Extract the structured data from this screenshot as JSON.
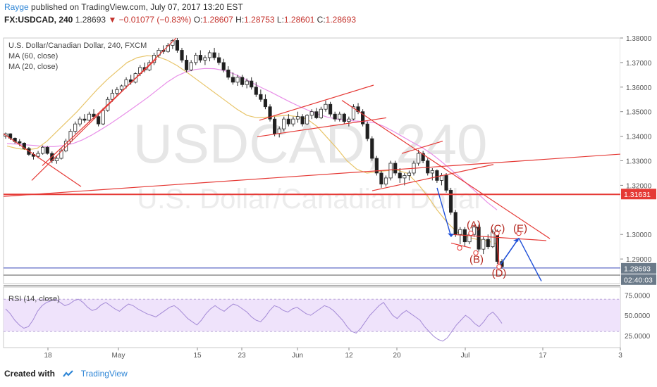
{
  "header": {
    "user": "Rayge",
    "published": "published on TradingView.com, July 07, 2017 13:20 EST",
    "symbol": "FX:USDCAD, 240",
    "last": "1.28693",
    "change": "−0.01077 (−0.83%)",
    "ohlc": {
      "o_label": "O:",
      "o": "1.28607",
      "h_label": "H:",
      "h": "1.28753",
      "l_label": "L:",
      "l": "1.28601",
      "c_label": "C:",
      "c": "1.28693"
    }
  },
  "legend": {
    "title": "U.S. Dollar/Canadian Dollar, 240, FXCM",
    "ma60": "MA (60, close)",
    "ma20": "MA (20, close)",
    "rsi": "RSI (14, close)"
  },
  "watermark": {
    "big": "USDCAD, 240",
    "small": "U.S. Dollar/Canadian Dollar"
  },
  "colors": {
    "up": "#4a4a4a",
    "down": "#1f1f1f",
    "ma60": "#e88fe8",
    "ma20": "#e8c56a",
    "trend": "#e53935",
    "arrow_blue": "#1e4fd8",
    "price_line": "#3543b8",
    "rsi_line": "#a48ad6",
    "rsi_band": "#efe3fb",
    "accent": "#2f86d6"
  },
  "chart_data": {
    "type": "candlestick",
    "price_scale": {
      "min": 1.28,
      "max": 1.38,
      "ticks": [
        "1.38000",
        "1.37000",
        "1.36000",
        "1.35000",
        "1.34000",
        "1.33000",
        "1.32000",
        "1.30000",
        "1.29000"
      ]
    },
    "x_labels": [
      "18",
      "May",
      "15",
      "23",
      "Jun",
      "12",
      "20",
      "Jul",
      "17",
      "3"
    ],
    "candles": [
      [
        1.34,
        1.3415,
        1.339,
        1.341
      ],
      [
        1.341,
        1.3412,
        1.3385,
        1.3392
      ],
      [
        1.3392,
        1.3395,
        1.337,
        1.3378
      ],
      [
        1.3378,
        1.3388,
        1.336,
        1.3372
      ],
      [
        1.3372,
        1.3375,
        1.3345,
        1.335
      ],
      [
        1.335,
        1.3356,
        1.332,
        1.3326
      ],
      [
        1.3326,
        1.3335,
        1.3305,
        1.3318
      ],
      [
        1.3318,
        1.334,
        1.331,
        1.333
      ],
      [
        1.333,
        1.3362,
        1.3325,
        1.3355
      ],
      [
        1.3355,
        1.336,
        1.3325,
        1.333
      ],
      [
        1.333,
        1.3338,
        1.329,
        1.33
      ],
      [
        1.33,
        1.3318,
        1.3288,
        1.331
      ],
      [
        1.331,
        1.335,
        1.3305,
        1.334
      ],
      [
        1.334,
        1.339,
        1.3335,
        1.338
      ],
      [
        1.338,
        1.343,
        1.337,
        1.342
      ],
      [
        1.342,
        1.346,
        1.341,
        1.345
      ],
      [
        1.345,
        1.348,
        1.344,
        1.347
      ],
      [
        1.347,
        1.349,
        1.3455,
        1.3465
      ],
      [
        1.3465,
        1.35,
        1.346,
        1.349
      ],
      [
        1.349,
        1.351,
        1.347,
        1.348
      ],
      [
        1.348,
        1.3495,
        1.344,
        1.345
      ],
      [
        1.345,
        1.3515,
        1.3445,
        1.3505
      ],
      [
        1.3505,
        1.356,
        1.35,
        1.355
      ],
      [
        1.355,
        1.359,
        1.354,
        1.3575
      ],
      [
        1.3575,
        1.36,
        1.3565,
        1.359
      ],
      [
        1.359,
        1.361,
        1.358,
        1.3605
      ],
      [
        1.3605,
        1.364,
        1.3595,
        1.363
      ],
      [
        1.363,
        1.365,
        1.361,
        1.362
      ],
      [
        1.362,
        1.366,
        1.3615,
        1.3655
      ],
      [
        1.3655,
        1.369,
        1.3645,
        1.368
      ],
      [
        1.368,
        1.37,
        1.366,
        1.367
      ],
      [
        1.367,
        1.371,
        1.3665,
        1.37
      ],
      [
        1.37,
        1.374,
        1.369,
        1.373
      ],
      [
        1.373,
        1.376,
        1.372,
        1.375
      ],
      [
        1.375,
        1.377,
        1.3735,
        1.3745
      ],
      [
        1.3745,
        1.378,
        1.374,
        1.377
      ],
      [
        1.377,
        1.3795,
        1.3755,
        1.379
      ],
      [
        1.379,
        1.38,
        1.374,
        1.375
      ],
      [
        1.375,
        1.376,
        1.37,
        1.371
      ],
      [
        1.371,
        1.373,
        1.366,
        1.367
      ],
      [
        1.367,
        1.371,
        1.3665,
        1.37
      ],
      [
        1.37,
        1.374,
        1.369,
        1.373
      ],
      [
        1.373,
        1.375,
        1.37,
        1.371
      ],
      [
        1.371,
        1.373,
        1.369,
        1.372
      ],
      [
        1.372,
        1.375,
        1.3705,
        1.374
      ],
      [
        1.374,
        1.376,
        1.371,
        1.372
      ],
      [
        1.372,
        1.374,
        1.369,
        1.37
      ],
      [
        1.37,
        1.3715,
        1.366,
        1.367
      ],
      [
        1.367,
        1.3685,
        1.363,
        1.364
      ],
      [
        1.364,
        1.366,
        1.361,
        1.362
      ],
      [
        1.362,
        1.365,
        1.3605,
        1.364
      ],
      [
        1.364,
        1.365,
        1.36,
        1.361
      ],
      [
        1.361,
        1.3635,
        1.3595,
        1.3625
      ],
      [
        1.3625,
        1.364,
        1.359,
        1.36
      ],
      [
        1.36,
        1.362,
        1.356,
        1.357
      ],
      [
        1.357,
        1.359,
        1.354,
        1.355
      ],
      [
        1.355,
        1.357,
        1.351,
        1.352
      ],
      [
        1.352,
        1.353,
        1.346,
        1.347
      ],
      [
        1.347,
        1.348,
        1.34,
        1.341
      ],
      [
        1.341,
        1.344,
        1.3395,
        1.343
      ],
      [
        1.343,
        1.348,
        1.342,
        1.347
      ],
      [
        1.347,
        1.349,
        1.344,
        1.345
      ],
      [
        1.345,
        1.348,
        1.344,
        1.347
      ],
      [
        1.347,
        1.35,
        1.3455,
        1.348
      ],
      [
        1.348,
        1.349,
        1.344,
        1.345
      ],
      [
        1.345,
        1.349,
        1.3445,
        1.3485
      ],
      [
        1.3485,
        1.351,
        1.347,
        1.35
      ],
      [
        1.35,
        1.3515,
        1.347,
        1.3475
      ],
      [
        1.3475,
        1.352,
        1.347,
        1.351
      ],
      [
        1.351,
        1.3545,
        1.35,
        1.353
      ],
      [
        1.353,
        1.354,
        1.348,
        1.349
      ],
      [
        1.349,
        1.35,
        1.346,
        1.347
      ],
      [
        1.347,
        1.35,
        1.346,
        1.349
      ],
      [
        1.349,
        1.3495,
        1.345,
        1.346
      ],
      [
        1.346,
        1.348,
        1.344,
        1.347
      ],
      [
        1.347,
        1.353,
        1.3465,
        1.352
      ],
      [
        1.352,
        1.3535,
        1.349,
        1.35
      ],
      [
        1.35,
        1.351,
        1.344,
        1.345
      ],
      [
        1.345,
        1.346,
        1.338,
        1.339
      ],
      [
        1.339,
        1.34,
        1.33,
        1.331
      ],
      [
        1.331,
        1.332,
        1.324,
        1.325
      ],
      [
        1.325,
        1.326,
        1.319,
        1.3205
      ],
      [
        1.3205,
        1.324,
        1.3195,
        1.323
      ],
      [
        1.323,
        1.33,
        1.322,
        1.329
      ],
      [
        1.329,
        1.33,
        1.324,
        1.325
      ],
      [
        1.325,
        1.327,
        1.321,
        1.323
      ],
      [
        1.323,
        1.325,
        1.32,
        1.324
      ],
      [
        1.324,
        1.326,
        1.322,
        1.325
      ],
      [
        1.325,
        1.33,
        1.324,
        1.329
      ],
      [
        1.329,
        1.3345,
        1.328,
        1.333
      ],
      [
        1.333,
        1.334,
        1.329,
        1.33
      ],
      [
        1.33,
        1.331,
        1.324,
        1.325
      ],
      [
        1.325,
        1.327,
        1.322,
        1.326
      ],
      [
        1.326,
        1.3265,
        1.321,
        1.322
      ],
      [
        1.322,
        1.325,
        1.32,
        1.324
      ],
      [
        1.324,
        1.325,
        1.317,
        1.318
      ],
      [
        1.318,
        1.319,
        1.308,
        1.309
      ],
      [
        1.309,
        1.31,
        1.299,
        1.3
      ],
      [
        1.3,
        1.303,
        1.296,
        1.302
      ],
      [
        1.302,
        1.303,
        1.295,
        1.297
      ],
      [
        1.297,
        1.301,
        1.296,
        1.3
      ],
      [
        1.3,
        1.304,
        1.299,
        1.303
      ],
      [
        1.303,
        1.304,
        1.293,
        1.294
      ],
      [
        1.294,
        1.299,
        1.292,
        1.298
      ],
      [
        1.298,
        1.3,
        1.294,
        1.295
      ],
      [
        1.295,
        1.302,
        1.2945,
        1.301
      ],
      [
        1.301,
        1.302,
        1.288,
        1.289
      ],
      [
        1.289,
        1.29,
        1.286,
        1.2869
      ]
    ],
    "ma60": [
      1.337,
      1.3368,
      1.3365,
      1.3362,
      1.3358,
      1.3358,
      1.3362,
      1.337,
      1.3385,
      1.3405,
      1.3428,
      1.3452,
      1.3478,
      1.3505,
      1.3532,
      1.356,
      1.359,
      1.362,
      1.3645,
      1.3662,
      1.3672,
      1.3676,
      1.3675,
      1.3668,
      1.3655,
      1.3638,
      1.3618,
      1.3598,
      1.358,
      1.356,
      1.354,
      1.3522,
      1.3505,
      1.349,
      1.3478,
      1.347,
      1.3465,
      1.3462,
      1.346,
      1.3455,
      1.344,
      1.342,
      1.3398,
      1.3376,
      1.3355,
      1.333,
      1.33,
      1.3268,
      1.3235,
      1.32,
      1.3165,
      1.313,
      1.31
    ],
    "ma20": [
      1.336,
      1.335,
      1.3345,
      1.335,
      1.338,
      1.342,
      1.346,
      1.35,
      1.3545,
      1.359,
      1.363,
      1.3665,
      1.37,
      1.372,
      1.3728,
      1.3725,
      1.371,
      1.3688,
      1.366,
      1.363,
      1.36,
      1.357,
      1.354,
      1.351,
      1.3485,
      1.3475,
      1.3478,
      1.3482,
      1.3485,
      1.348,
      1.347,
      1.344,
      1.3395,
      1.335,
      1.33,
      1.3265,
      1.325,
      1.3255,
      1.326,
      1.3262,
      1.325,
      1.321,
      1.316,
      1.31,
      1.305,
      1.301,
      1.299,
      1.298,
      1.2975,
      1.296
    ],
    "rsi": [
      58,
      52,
      44,
      38,
      34,
      36,
      44,
      55,
      62,
      66,
      68,
      70,
      66,
      62,
      64,
      68,
      70,
      66,
      60,
      56,
      58,
      63,
      66,
      62,
      58,
      55,
      60,
      64,
      62,
      58,
      55,
      52,
      50,
      48,
      52,
      56,
      60,
      62,
      58,
      52,
      46,
      42,
      38,
      44,
      52,
      58,
      62,
      58,
      55,
      60,
      64,
      62,
      58,
      54,
      48,
      44,
      42,
      48,
      56,
      62,
      60,
      56,
      54,
      58,
      60,
      56,
      52,
      50,
      54,
      58,
      62,
      60,
      56,
      50,
      44,
      36,
      30,
      28,
      34,
      42,
      50,
      56,
      62,
      66,
      58,
      50,
      46,
      52,
      56,
      52,
      48,
      44,
      36,
      30,
      24,
      20,
      18,
      22,
      30,
      38,
      44,
      50,
      46,
      40,
      36,
      42,
      50,
      54,
      48,
      40
    ],
    "rsi_scale": {
      "ticks": [
        "75.0000",
        "50.0000",
        "25.0000"
      ],
      "band": [
        30,
        70
      ]
    },
    "price_labels": {
      "level_red": "1.31631",
      "last": "1.28693",
      "countdown": "02:40:03"
    },
    "wave_labels": [
      "(A)",
      "(B)",
      "(C)",
      "(D)",
      "(E)"
    ]
  },
  "footer": {
    "created_with": "Created with",
    "brand": "TradingView"
  }
}
